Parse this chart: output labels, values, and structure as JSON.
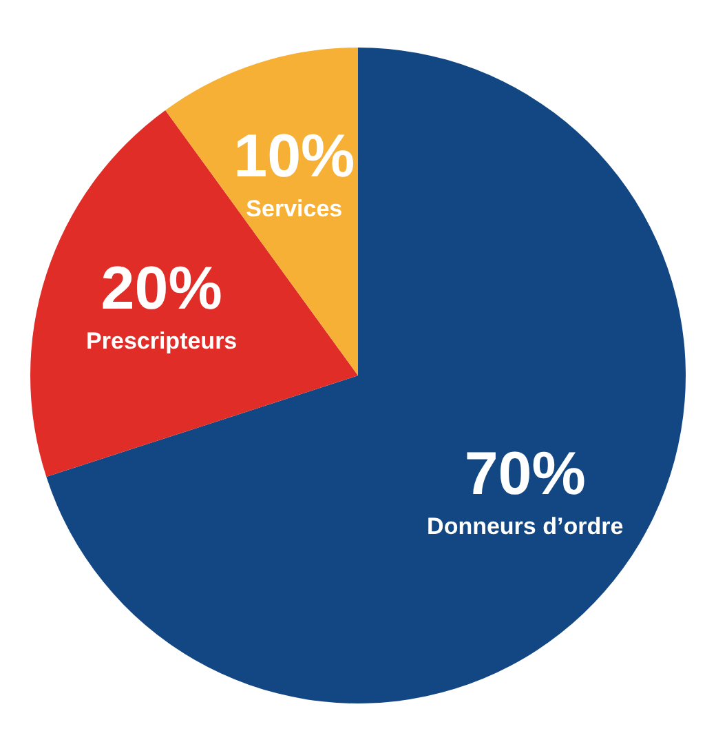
{
  "chart_data": {
    "type": "pie",
    "categories": [
      "Donneurs d’ordre",
      "Prescripteurs",
      "Services"
    ],
    "values": [
      70,
      20,
      10
    ],
    "colors": [
      "#134784",
      "#e12d27",
      "#f6b035"
    ],
    "value_labels": [
      "70%",
      "20%",
      "10%"
    ]
  }
}
